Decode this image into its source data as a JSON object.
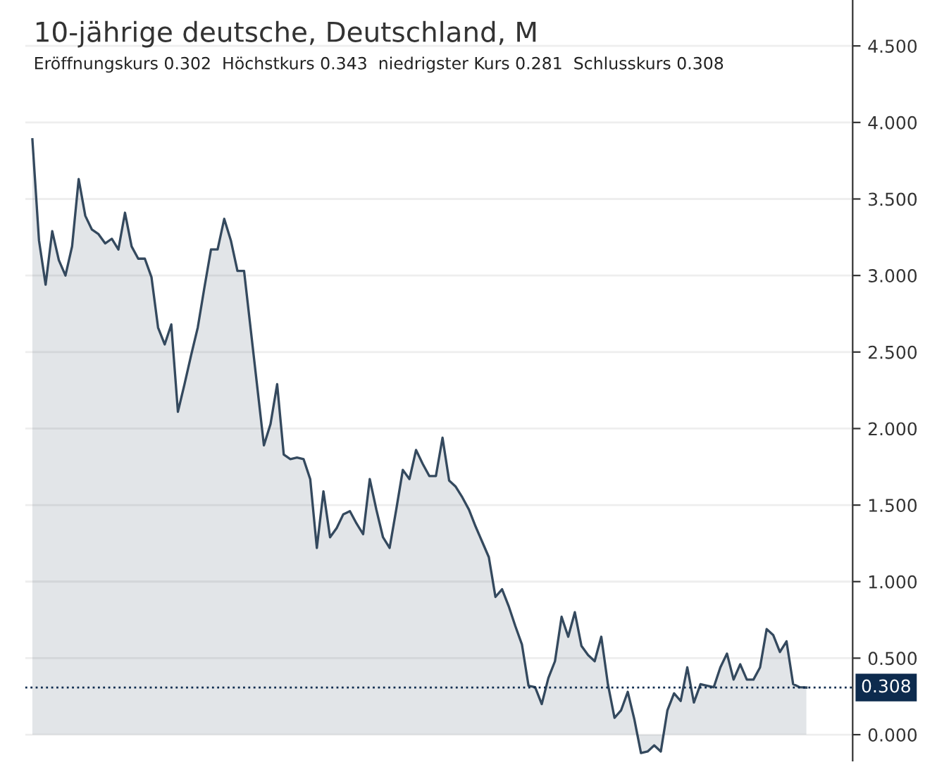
{
  "chart_data": {
    "type": "area",
    "title": "10-jährige deutsche, Deutschland, M",
    "subtitle": "Eröffnungskurs 0.302  Höchstkurs 0.343  niedrigster Kurs 0.281  Schlusskurs 0.308",
    "categories": [
      null,
      null,
      null,
      null,
      null,
      null,
      null,
      null,
      null,
      null,
      null,
      null,
      null,
      null,
      null,
      null,
      null,
      null,
      null,
      null,
      null,
      null,
      null,
      null,
      null,
      null,
      null,
      null,
      null,
      null,
      null,
      null,
      null,
      null,
      null,
      null,
      null,
      null,
      null,
      null,
      null,
      null,
      null,
      null,
      null,
      null,
      null,
      null,
      null,
      null,
      null,
      null,
      null,
      null,
      null,
      null,
      null,
      null,
      null,
      null,
      null,
      null,
      null,
      null,
      null,
      null,
      null,
      null,
      null,
      null,
      null,
      null,
      null,
      null,
      null,
      null,
      null,
      null,
      null,
      null,
      null,
      null,
      null,
      null,
      null,
      null,
      null,
      null,
      null,
      null,
      null,
      null,
      null,
      null,
      null,
      null,
      null,
      null,
      null,
      null,
      null,
      null,
      null,
      null,
      null,
      null,
      null,
      null,
      null,
      null,
      null,
      null,
      null,
      null,
      null,
      null,
      null,
      null
    ],
    "series": [
      {
        "color": "#34495e",
        "values": [
          3.89,
          3.23,
          2.94,
          3.29,
          3.1,
          3.0,
          3.19,
          3.63,
          3.39,
          3.3,
          3.27,
          3.21,
          3.24,
          3.17,
          3.41,
          3.19,
          3.11,
          3.11,
          2.99,
          2.66,
          2.55,
          2.68,
          2.11,
          2.29,
          2.48,
          2.66,
          2.92,
          3.17,
          3.17,
          3.37,
          3.23,
          3.03,
          3.03,
          2.65,
          2.27,
          1.89,
          2.03,
          2.29,
          1.83,
          1.8,
          1.81,
          1.8,
          1.67,
          1.22,
          1.59,
          1.29,
          1.35,
          1.44,
          1.46,
          1.38,
          1.31,
          1.67,
          1.47,
          1.29,
          1.22,
          1.47,
          1.73,
          1.67,
          1.86,
          1.77,
          1.69,
          1.69,
          1.94,
          1.66,
          1.62,
          1.55,
          1.47,
          1.36,
          1.26,
          1.16,
          0.9,
          0.95,
          0.84,
          0.71,
          0.59,
          0.32,
          0.31,
          0.2,
          0.37,
          0.48,
          0.77,
          0.64,
          0.8,
          0.58,
          0.52,
          0.48,
          0.64,
          0.33,
          0.11,
          0.16,
          0.28,
          0.1,
          -0.12,
          -0.11,
          -0.07,
          -0.11,
          0.16,
          0.27,
          0.22,
          0.44,
          0.21,
          0.33,
          0.32,
          0.31,
          0.44,
          0.53,
          0.36,
          0.46,
          0.36,
          0.36,
          0.44,
          0.69,
          0.65,
          0.54,
          0.61,
          0.33,
          0.31,
          0.308
        ]
      }
    ],
    "ylim": [
      -0.17,
      4.8
    ],
    "yticks": [
      {
        "value": 0,
        "label": "0.000"
      },
      {
        "value": 0.5,
        "label": "0.500"
      },
      {
        "value": 1,
        "label": "1.000"
      },
      {
        "value": 1.5,
        "label": "1.500"
      },
      {
        "value": 2,
        "label": "2.000"
      },
      {
        "value": 2.5,
        "label": "2.500"
      },
      {
        "value": 3,
        "label": "3.000"
      },
      {
        "value": 3.5,
        "label": "3.500"
      },
      {
        "value": 4,
        "label": "4.000"
      },
      {
        "value": 4.5,
        "label": "4.500"
      }
    ],
    "ref_lines": [
      {
        "axis": "y",
        "value": 0.308,
        "label": "0.308",
        "color": "#0d2b4e",
        "line_style": "dotted"
      }
    ],
    "grid": "y",
    "legend": false,
    "marker": "none",
    "line_style": "solid"
  }
}
